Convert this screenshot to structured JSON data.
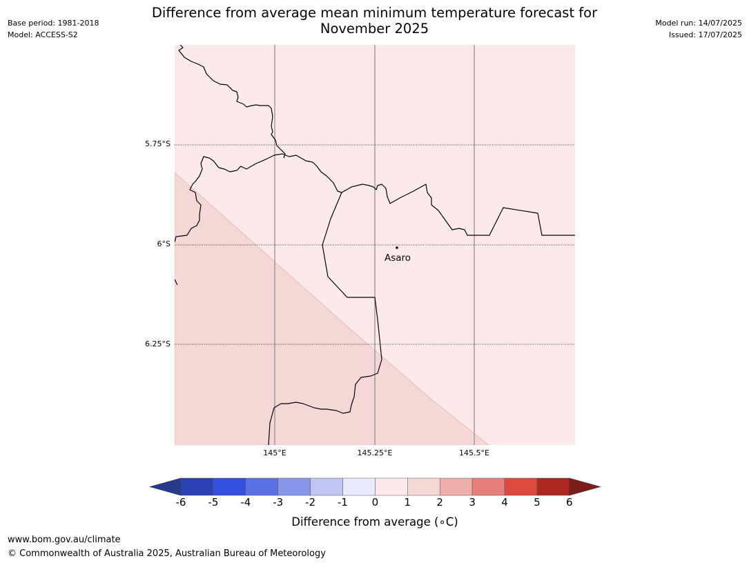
{
  "header": {
    "title_line1": "Difference from average mean minimum temperature forecast for",
    "title_line2": "November 2025",
    "base_period": "Base period: 1981-2018",
    "model": "Model: ACCESS-S2",
    "model_run": "Model run: 14/07/2025",
    "issued": "Issued: 17/07/2025"
  },
  "map": {
    "lat_labels": [
      "5.75°S",
      "6°S",
      "6.25°S"
    ],
    "lon_labels": [
      "145°E",
      "145.25°E",
      "145.5°E"
    ],
    "place_name": "Asaro",
    "zones": [
      {
        "category": "0 to 1",
        "color": "#fbeae9"
      },
      {
        "category": "1 to 2",
        "color": "#f5d7d5"
      }
    ]
  },
  "colorbar": {
    "label": "Difference from average (∘C)",
    "ticks": [
      "-6",
      "-5",
      "-4",
      "-3",
      "-2",
      "-1",
      "0",
      "1",
      "2",
      "3",
      "4",
      "5",
      "6"
    ],
    "colors": [
      "#27398c",
      "#2a40b3",
      "#3350e0",
      "#5a72e6",
      "#8797ea",
      "#bfc6f2",
      "#e9eafb",
      "#fbeae9",
      "#f5d7d5",
      "#efaea9",
      "#e6807c",
      "#dc4a3e",
      "#ad2822",
      "#7b1d1b"
    ]
  },
  "footer": {
    "url": "www.bom.gov.au/climate",
    "copyright": "© Commonwealth of Australia 2025, Australian Bureau of Meteorology"
  }
}
